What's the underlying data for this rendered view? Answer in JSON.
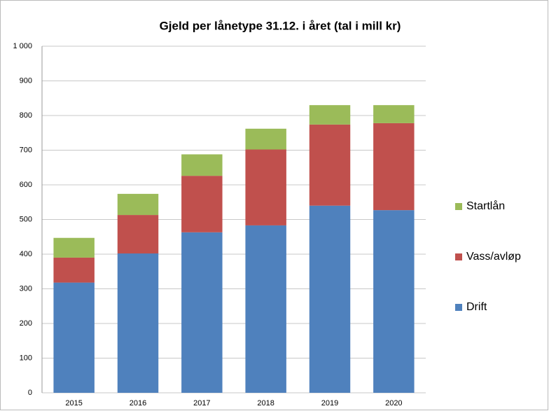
{
  "chart_data": {
    "type": "stacked_bar",
    "title": "Gjeld per lånetype 31.12. i året (tal i mill kr)",
    "categories": [
      "2015",
      "2016",
      "2017",
      "2018",
      "2019",
      "2020"
    ],
    "series": [
      {
        "name": "Drift",
        "color": "#4f81bd",
        "values": [
          318,
          402,
          463,
          483,
          540,
          527
        ]
      },
      {
        "name": "Vass/avløp",
        "color": "#c0504d",
        "values": [
          72,
          111,
          163,
          219,
          234,
          251
        ]
      },
      {
        "name": "Startlån",
        "color": "#9bbb59",
        "values": [
          57,
          61,
          62,
          60,
          56,
          52
        ]
      }
    ],
    "ylim": [
      0,
      1000
    ],
    "yticks": [
      0,
      100,
      200,
      300,
      400,
      500,
      600,
      700,
      800,
      900,
      {
        "value": 1000,
        "label": "1 000"
      }
    ],
    "grid": true,
    "legend": "right"
  }
}
